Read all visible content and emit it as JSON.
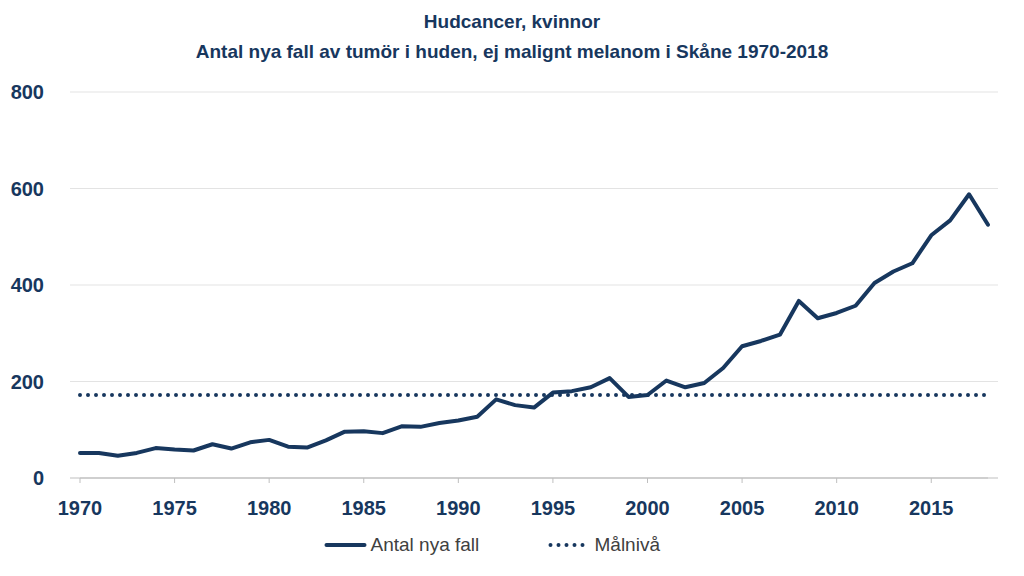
{
  "chart_data": {
    "type": "line",
    "title": "Hudcancer, kvinnor",
    "subtitle": "Antal nya fall av tumör i huden, ej malignt melanom i Skåne 1970-2018",
    "x": [
      1970,
      1971,
      1972,
      1973,
      1974,
      1975,
      1976,
      1977,
      1978,
      1979,
      1980,
      1981,
      1982,
      1983,
      1984,
      1985,
      1986,
      1987,
      1988,
      1989,
      1990,
      1991,
      1992,
      1993,
      1994,
      1995,
      1996,
      1997,
      1998,
      1999,
      2000,
      2001,
      2002,
      2003,
      2004,
      2005,
      2006,
      2007,
      2008,
      2009,
      2010,
      2011,
      2012,
      2013,
      2014,
      2015,
      2016,
      2017,
      2018
    ],
    "series": [
      {
        "name": "Antal nya fall",
        "color": "#17375e",
        "line_style": "solid",
        "values": [
          52,
          52,
          46,
          52,
          62,
          59,
          57,
          70,
          61,
          74,
          79,
          65,
          63,
          78,
          96,
          97,
          93,
          107,
          106,
          114,
          119,
          127,
          163,
          151,
          146,
          177,
          180,
          188,
          207,
          168,
          172,
          202,
          188,
          197,
          228,
          273,
          284,
          297,
          367,
          331,
          342,
          357,
          404,
          428,
          445,
          503,
          534,
          588,
          525
        ]
      },
      {
        "name": "Målnivå",
        "color": "#17375e",
        "line_style": "dotted",
        "values": [
          172,
          172,
          172,
          172,
          172,
          172,
          172,
          172,
          172,
          172,
          172,
          172,
          172,
          172,
          172,
          172,
          172,
          172,
          172,
          172,
          172,
          172,
          172,
          172,
          172,
          172,
          172,
          172,
          172,
          172,
          172,
          172,
          172,
          172,
          172,
          172,
          172,
          172,
          172,
          172,
          172,
          172,
          172,
          172,
          172,
          172,
          172,
          172,
          172
        ]
      }
    ],
    "xlim": [
      1970,
      2018
    ],
    "xticks": [
      1970,
      1975,
      1980,
      1985,
      1990,
      1995,
      2000,
      2005,
      2010,
      2015
    ],
    "ylim": [
      0,
      800
    ],
    "yticks": [
      0,
      200,
      400,
      600,
      800
    ],
    "grid": true,
    "legend": "bottom"
  }
}
